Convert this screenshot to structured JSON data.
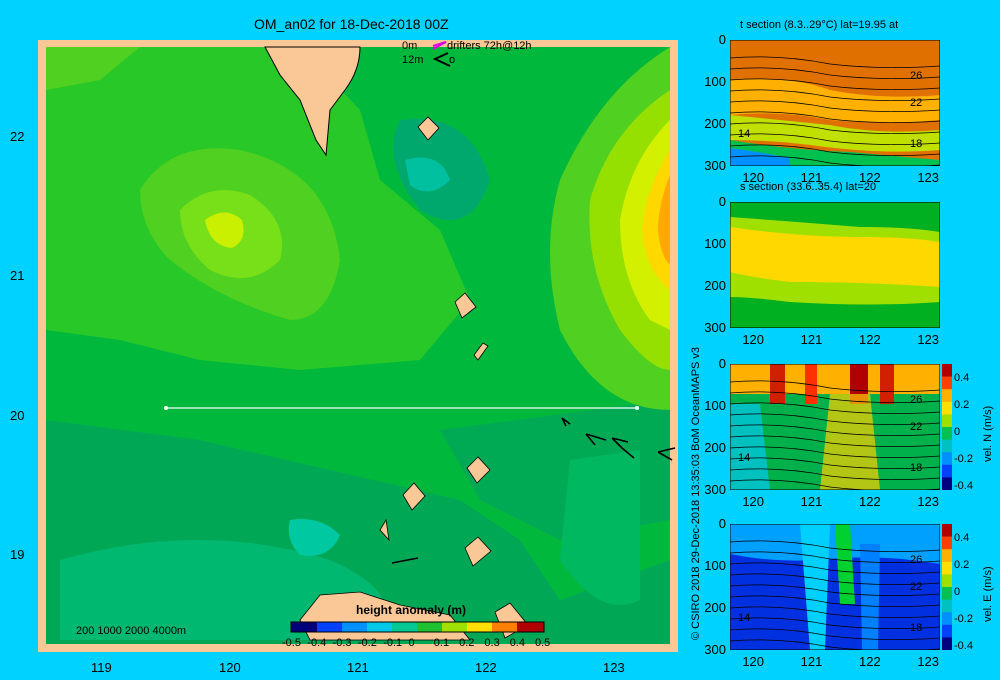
{
  "map": {
    "title": "OM_an02 for 18-Dec-2018 00Z",
    "drifter_legend_0m": "0m",
    "drifter_legend_12m": "12m",
    "drifter_text": "drifters 72h@12h",
    "drifter_12m_suffix": "o",
    "isobaths_label": "200  1000  2000  4000m",
    "colorbar_title": "height anomaly (m)",
    "colorbar_ticks": [
      "-0.5",
      "-0.4",
      "-0.3",
      "-0.2",
      "-0.1",
      "0",
      "0.1",
      "0.2",
      "0.3",
      "0.4",
      "0.5"
    ],
    "x_ticks": [
      "119",
      "120",
      "121",
      "122",
      "123"
    ],
    "y_ticks": [
      "22",
      "21",
      "20",
      "19"
    ],
    "section_line_lat": 20,
    "section_line_lon": [
      119.5,
      123.2
    ]
  },
  "credit": "© CSIRO 2018   29-Dec-2018 13:35:03 BoM OceanMAPS v3",
  "panels": [
    {
      "title": "t section (8.3..29°C) lat=19.95 at",
      "colorbar": null,
      "contour_labels": [
        "26",
        "22",
        "18",
        "14"
      ]
    },
    {
      "title": "s section (33.6..35.4) lat=20",
      "colorbar": null,
      "contour_labels": []
    },
    {
      "title": "",
      "colorbar": "vel. N (m/s)",
      "contour_labels": [
        "26",
        "22",
        "18",
        "14"
      ]
    },
    {
      "title": "",
      "colorbar": "vel. E (m/s)",
      "contour_labels": [
        "26",
        "22",
        "18",
        "14"
      ]
    }
  ],
  "panel_y_ticks": [
    "0",
    "100",
    "200",
    "300"
  ],
  "panel_x_ticks": [
    "120",
    "121",
    "122",
    "123"
  ],
  "panel_cb_ticks": [
    "0.4",
    "0.2",
    "0",
    "-0.2",
    "-0.4"
  ],
  "chart_data": [
    {
      "type": "heatmap",
      "title": "OM_an02 for 18-Dec-2018 00Z",
      "xlabel": "",
      "ylabel": "",
      "xlim": [
        118.5,
        123.5
      ],
      "ylim": [
        18.3,
        22.7
      ],
      "colorbar": {
        "label": "height anomaly (m)",
        "range": [
          -0.5,
          0.5
        ]
      },
      "x_ticks": [
        119,
        120,
        121,
        122,
        123
      ],
      "y_ticks": [
        19,
        20,
        21,
        22
      ],
      "section_line": {
        "lat": 20,
        "lon_start": 119.5,
        "lon_end": 123.2
      }
    },
    {
      "type": "heatmap",
      "title": "t section (8.3..29°C) lat=19.95 at",
      "xlim": [
        119.6,
        123.2
      ],
      "ylim": [
        300,
        0
      ],
      "x_ticks": [
        120,
        121,
        122,
        123
      ],
      "y_ticks": [
        0,
        100,
        200,
        300
      ]
    },
    {
      "type": "heatmap",
      "title": "s section (33.6..35.4) lat=20",
      "xlim": [
        119.6,
        123.2
      ],
      "ylim": [
        300,
        0
      ],
      "x_ticks": [
        120,
        121,
        122,
        123
      ],
      "y_ticks": [
        0,
        100,
        200,
        300
      ]
    },
    {
      "type": "heatmap",
      "colorbar": {
        "label": "vel. N (m/s)",
        "range": [
          -0.4,
          0.4
        ]
      },
      "xlim": [
        119.6,
        123.2
      ],
      "ylim": [
        300,
        0
      ]
    },
    {
      "type": "heatmap",
      "colorbar": {
        "label": "vel. E (m/s)",
        "range": [
          -0.4,
          0.4
        ]
      },
      "xlim": [
        119.6,
        123.2
      ],
      "ylim": [
        300,
        0
      ]
    }
  ]
}
